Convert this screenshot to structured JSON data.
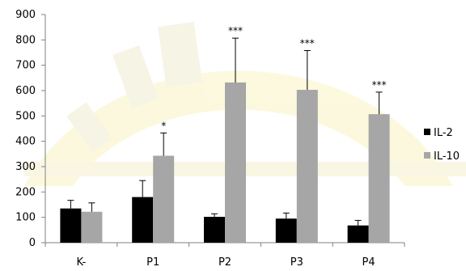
{
  "chart_data": {
    "type": "bar",
    "categories": [
      "K-",
      "P1",
      "P2",
      "P3",
      "P4"
    ],
    "series": [
      {
        "name": "IL-2",
        "values": [
          135,
          180,
          102,
          95,
          68
        ],
        "errors": [
          32,
          65,
          12,
          22,
          20
        ],
        "color": "#000000"
      },
      {
        "name": "IL-10",
        "values": [
          122,
          343,
          632,
          603,
          507
        ],
        "errors": [
          35,
          90,
          175,
          155,
          87
        ],
        "color": "#a6a6a6"
      }
    ],
    "annotations": [
      "",
      "*",
      "***",
      "***",
      "***"
    ],
    "ylim": [
      0,
      900
    ],
    "yticks": [
      "0",
      "100",
      "200",
      "300",
      "400",
      "500",
      "600",
      "700",
      "800",
      "900"
    ],
    "legend_position": "right"
  }
}
